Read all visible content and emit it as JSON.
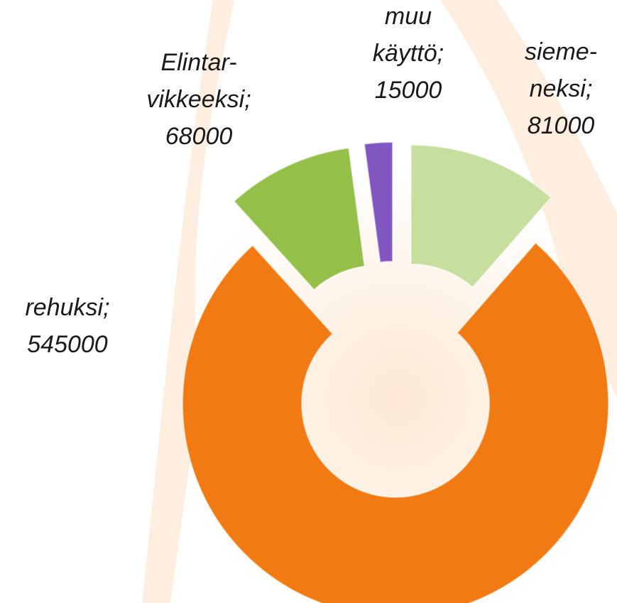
{
  "chart_data": {
    "type": "donut",
    "categories": [
      [
        "sieme-",
        "neksi;"
      ],
      [
        "rehuksi;"
      ],
      [
        "Elintar-",
        "vikkeeksi;"
      ],
      [
        "muu",
        "käyttö;"
      ]
    ],
    "values": [
      81000,
      545000,
      68000,
      15000
    ],
    "colors": [
      "#c6df9f",
      "#f27a12",
      "#94c04a",
      "#8156c0"
    ],
    "exploded": [
      true,
      false,
      true,
      true
    ]
  }
}
